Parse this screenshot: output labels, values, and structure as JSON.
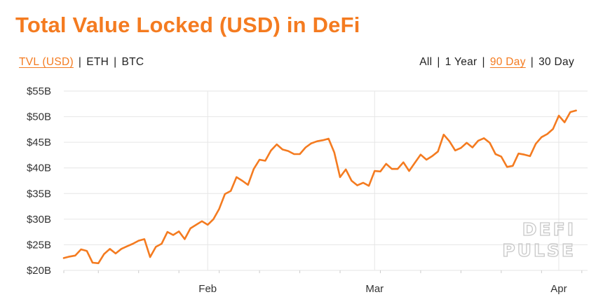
{
  "title": "Total Value Locked (USD) in DeFi",
  "metric_toggle": [
    {
      "label": "TVL (USD)",
      "active": true
    },
    {
      "label": "ETH",
      "active": false
    },
    {
      "label": "BTC",
      "active": false
    }
  ],
  "range_toggle": [
    {
      "label": "All",
      "active": false
    },
    {
      "label": "1 Year",
      "active": false
    },
    {
      "label": "90 Day",
      "active": true
    },
    {
      "label": "30 Day",
      "active": false
    }
  ],
  "separator": "|",
  "watermark": [
    "DEFI",
    "PULSE"
  ],
  "colors": {
    "accent": "#F47B20",
    "grid": "#e6e6e6",
    "axis_text": "#333333"
  },
  "chart_data": {
    "type": "line",
    "ylabels": [
      "$20B",
      "$25B",
      "$30B",
      "$35B",
      "$40B",
      "$45B",
      "$50B",
      "$55B"
    ],
    "ylim": [
      20,
      55
    ],
    "xlim": [
      0,
      91
    ],
    "xtick_positions": [
      0,
      6,
      13,
      20,
      27,
      34,
      41,
      48,
      55,
      62,
      69,
      76,
      83,
      90
    ],
    "month_ticks": [
      {
        "label": "Feb",
        "x": 25
      },
      {
        "label": "Mar",
        "x": 54
      },
      {
        "label": "Apr",
        "x": 86
      }
    ],
    "grid": true,
    "series": [
      {
        "values": [
          22.4,
          22.7,
          22.9,
          24.1,
          23.8,
          21.5,
          21.4,
          23.2,
          24.2,
          23.3,
          24.2,
          24.7,
          25.2,
          25.8,
          26.1,
          22.6,
          24.6,
          25.2,
          27.5,
          26.9,
          27.6,
          26.1,
          28.2,
          28.9,
          29.6,
          28.9,
          30.0,
          32.0,
          34.9,
          35.5,
          38.2,
          37.5,
          36.7,
          39.8,
          41.6,
          41.4,
          43.4,
          44.6,
          43.6,
          43.3,
          42.7,
          42.7,
          44.0,
          44.8,
          45.2,
          45.4,
          45.7,
          43.0,
          38.2,
          39.7,
          37.5,
          36.6,
          37.1,
          36.5,
          39.4,
          39.3,
          40.8,
          39.8,
          39.8,
          41.1,
          39.4,
          41.0,
          42.6,
          41.6,
          42.3,
          43.2,
          46.5,
          45.2,
          43.4,
          43.9,
          44.9,
          44.0,
          45.3,
          45.8,
          44.9,
          42.7,
          42.2,
          40.2,
          40.4,
          42.8,
          42.6,
          42.3,
          44.7,
          46.0,
          46.6,
          47.6,
          50.2,
          48.9,
          50.9,
          51.2
        ]
      }
    ]
  }
}
